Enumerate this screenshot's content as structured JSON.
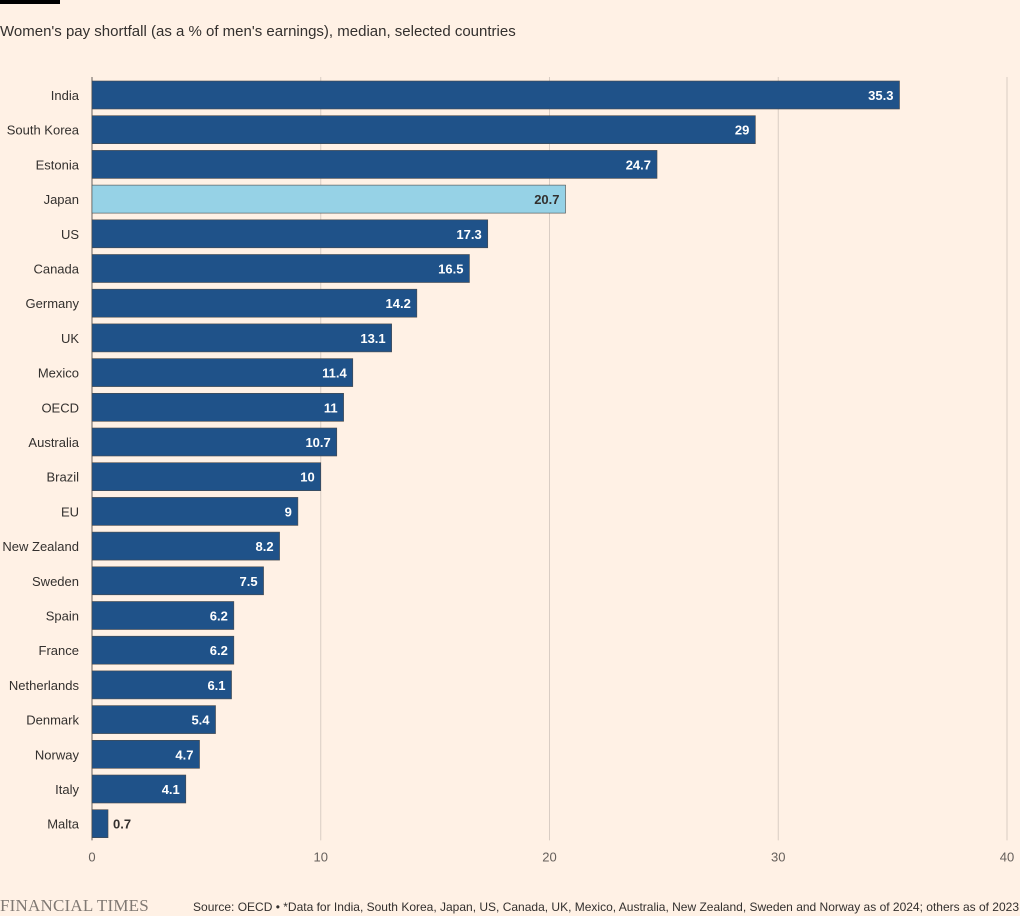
{
  "chart_data": {
    "type": "bar",
    "orientation": "horizontal",
    "title": "Women's pay shortfall (as a % of men's earnings), median, selected countries",
    "categories": [
      "India",
      "South Korea",
      "Estonia",
      "Japan",
      "US",
      "Canada",
      "Germany",
      "UK",
      "Mexico",
      "OECD",
      "Australia",
      "Brazil",
      "EU",
      "New Zealand",
      "Sweden",
      "Spain",
      "France",
      "Netherlands",
      "Denmark",
      "Norway",
      "Italy",
      "Malta"
    ],
    "values": [
      35.3,
      29,
      24.7,
      20.7,
      17.3,
      16.5,
      14.2,
      13.1,
      11.4,
      11,
      10.7,
      10,
      9,
      8.2,
      7.5,
      6.2,
      6.2,
      6.1,
      5.4,
      4.7,
      4.1,
      0.7
    ],
    "highlight": "Japan",
    "xlim": [
      0,
      40
    ],
    "xticks": [
      0,
      10,
      20,
      30,
      40
    ],
    "grid": true,
    "colors": {
      "bar": "#1f5289",
      "highlight": "#96d2e6",
      "label_light": "#ffffff",
      "label_dark": "#33302e",
      "grid": "#d9cdc4"
    }
  },
  "footer": {
    "brand": "FINANCIAL TIMES",
    "source": "Source: OECD • *Data for India, South Korea, Japan, US, Canada, UK, Mexico, Australia, New Zealand, Sweden and Norway as of 2024; others as of 2023"
  }
}
